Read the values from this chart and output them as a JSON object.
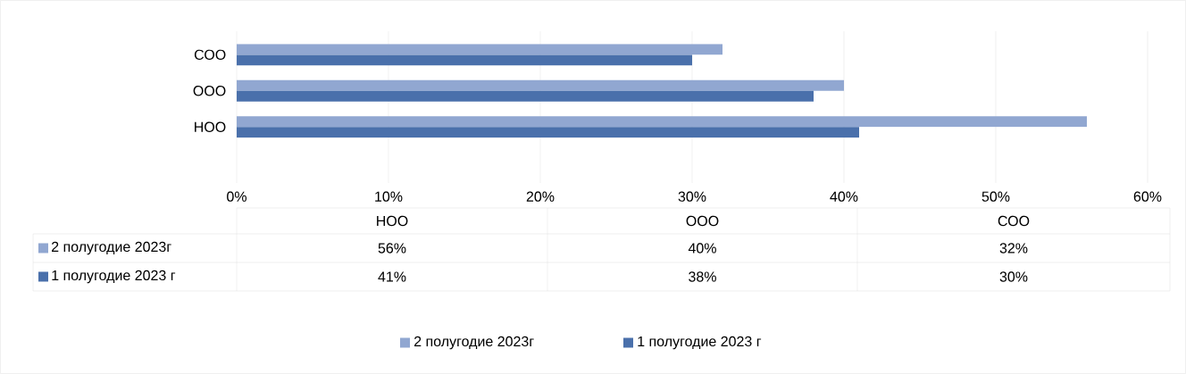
{
  "chart_data": {
    "type": "bar",
    "orientation": "horizontal",
    "categories": [
      "СОО",
      "ООО",
      "НОО"
    ],
    "series": [
      {
        "name": "2 полугодие 2023г",
        "color": "#91a7d1",
        "values": [
          32,
          40,
          56
        ]
      },
      {
        "name": "1 полугодие 2023 г",
        "color": "#4a70ab",
        "values": [
          30,
          38,
          41
        ]
      }
    ],
    "xlim": [
      0,
      60
    ],
    "xticks": [
      {
        "value": 0,
        "label": "0%"
      },
      {
        "value": 10,
        "label": "10%"
      },
      {
        "value": 20,
        "label": "20%"
      },
      {
        "value": 30,
        "label": "30%"
      },
      {
        "value": 40,
        "label": "40%"
      },
      {
        "value": 50,
        "label": "50%"
      },
      {
        "value": 60,
        "label": "60%"
      }
    ],
    "annotations": [
      "56%",
      "40%",
      "32%",
      "41%",
      "38%",
      "30%"
    ],
    "grid": "x",
    "legend": "bottom"
  }
}
